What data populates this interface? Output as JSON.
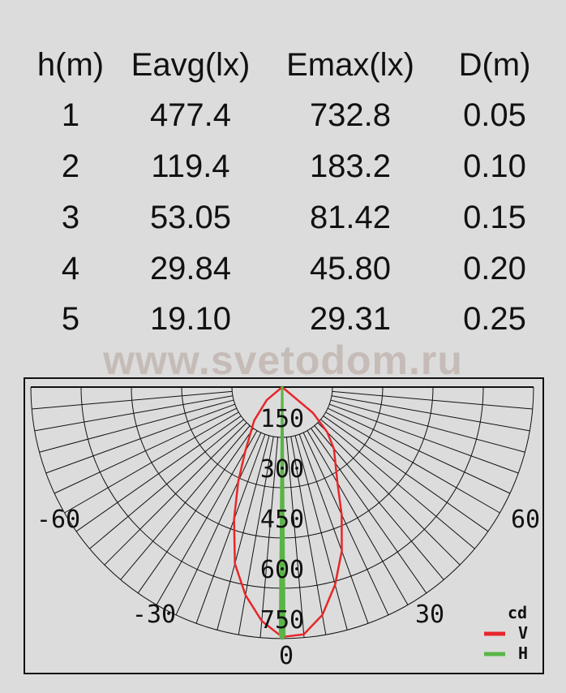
{
  "table": {
    "headers": [
      "h(m)",
      "Eavg(lx)",
      "Emax(lx)",
      "D(m)"
    ],
    "rows": [
      [
        "1",
        "477.4",
        "732.8",
        "0.05"
      ],
      [
        "2",
        "119.4",
        "183.2",
        "0.10"
      ],
      [
        "3",
        "53.05",
        "81.42",
        "0.15"
      ],
      [
        "4",
        "29.84",
        "45.80",
        "0.20"
      ],
      [
        "5",
        "19.10",
        "29.31",
        "0.25"
      ]
    ]
  },
  "watermark": "www.svetodom.ru",
  "chart_data": {
    "type": "polar",
    "unit_label": "cd",
    "radial_ticks": [
      "150",
      "300",
      "450",
      "600",
      "750"
    ],
    "radial_range": [
      0,
      750
    ],
    "angle_ticks": [
      "-60",
      "-30",
      "0",
      "30",
      "60"
    ],
    "angle_range": [
      -90,
      90
    ],
    "grid": true,
    "legend_position": "bottom-right",
    "series": [
      {
        "name": "V",
        "color": "#e8262a",
        "angles": [
          -60,
          -50,
          -40,
          -30,
          -25,
          -20,
          -15,
          -10,
          -5,
          0,
          5,
          10,
          15,
          20,
          25,
          30,
          40,
          45,
          50,
          60
        ],
        "values": [
          0,
          60,
          130,
          220,
          310,
          420,
          545,
          630,
          700,
          745,
          740,
          690,
          610,
          520,
          420,
          330,
          240,
          190,
          120,
          0
        ]
      },
      {
        "name": "H",
        "color": "#5ab446",
        "angles": [
          -2,
          -0.5,
          0,
          0.5,
          2
        ],
        "values": [
          0,
          740,
          750,
          740,
          0
        ]
      }
    ]
  }
}
